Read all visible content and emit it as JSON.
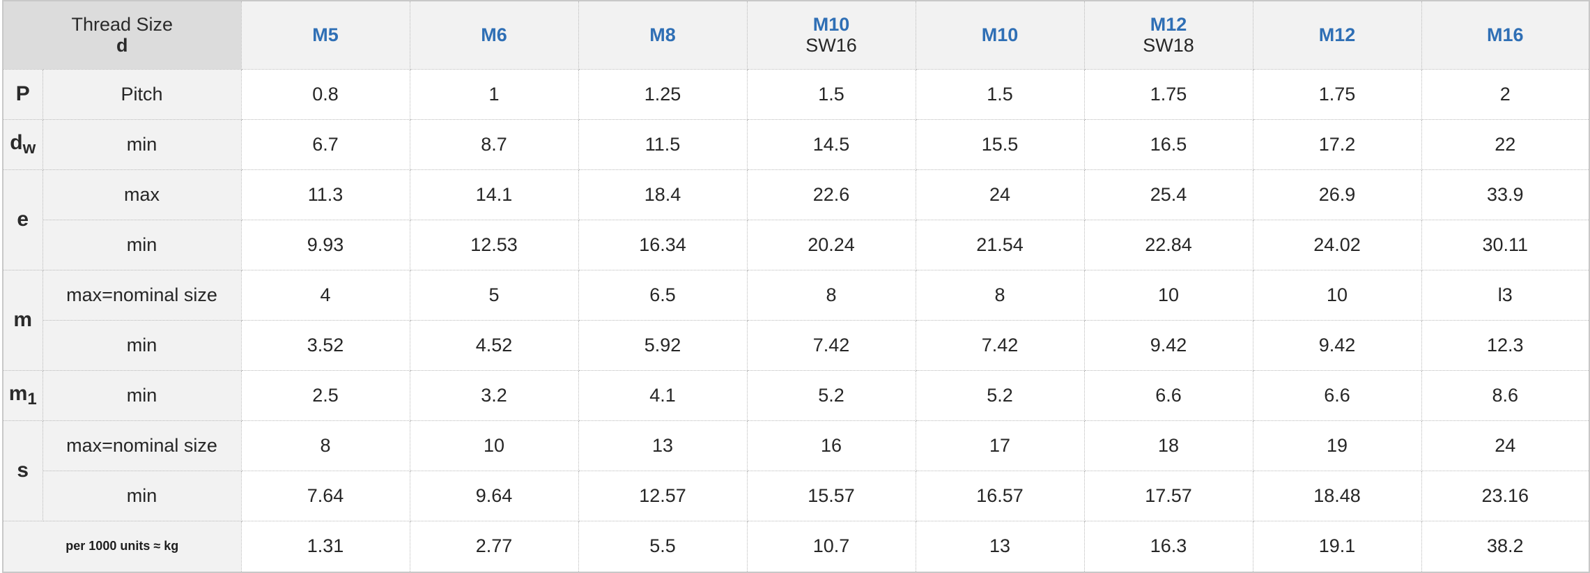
{
  "header": {
    "thread_size_label": "Thread Size",
    "thread_size_symbol": "d",
    "sizes": [
      {
        "name": "M5",
        "sub": ""
      },
      {
        "name": "M6",
        "sub": ""
      },
      {
        "name": "M8",
        "sub": ""
      },
      {
        "name": "M10",
        "sub": "SW16"
      },
      {
        "name": "M10",
        "sub": ""
      },
      {
        "name": "M12",
        "sub": "SW18"
      },
      {
        "name": "M12",
        "sub": ""
      },
      {
        "name": "M16",
        "sub": ""
      }
    ]
  },
  "rows": {
    "P": {
      "symbol": "P",
      "label": "Pitch",
      "values": [
        "0.8",
        "1",
        "1.25",
        "1.5",
        "1.5",
        "1.75",
        "1.75",
        "2"
      ]
    },
    "dw": {
      "symbol": "d",
      "symbol_sub": "w",
      "label": "min",
      "values": [
        "6.7",
        "8.7",
        "11.5",
        "14.5",
        "15.5",
        "16.5",
        "17.2",
        "22"
      ]
    },
    "e": {
      "symbol": "e",
      "max_label": "max",
      "max_values": [
        "11.3",
        "14.1",
        "18.4",
        "22.6",
        "24",
        "25.4",
        "26.9",
        "33.9"
      ],
      "min_label": "min",
      "min_values": [
        "9.93",
        "12.53",
        "16.34",
        "20.24",
        "21.54",
        "22.84",
        "24.02",
        "30.11"
      ]
    },
    "m": {
      "symbol": "m",
      "max_label": "max=nominal size",
      "max_values": [
        "4",
        "5",
        "6.5",
        "8",
        "8",
        "10",
        "10",
        "l3"
      ],
      "min_label": "min",
      "min_values": [
        "3.52",
        "4.52",
        "5.92",
        "7.42",
        "7.42",
        "9.42",
        "9.42",
        "12.3"
      ]
    },
    "m1": {
      "symbol": "m",
      "symbol_sub": "1",
      "label": "min",
      "values": [
        "2.5",
        "3.2",
        "4.1",
        "5.2",
        "5.2",
        "6.6",
        "6.6",
        "8.6"
      ]
    },
    "s": {
      "symbol": "s",
      "max_label": "max=nominal size",
      "max_values": [
        "8",
        "10",
        "13",
        "16",
        "17",
        "18",
        "19",
        "24"
      ],
      "min_label": "min",
      "min_values": [
        "7.64",
        "9.64",
        "12.57",
        "15.57",
        "16.57",
        "17.57",
        "18.48",
        "23.16"
      ]
    },
    "weight": {
      "label": "per 1000 units ≈ kg",
      "values": [
        "1.31",
        "2.77",
        "5.5",
        "10.7",
        "13",
        "16.3",
        "19.1",
        "38.2"
      ]
    }
  }
}
